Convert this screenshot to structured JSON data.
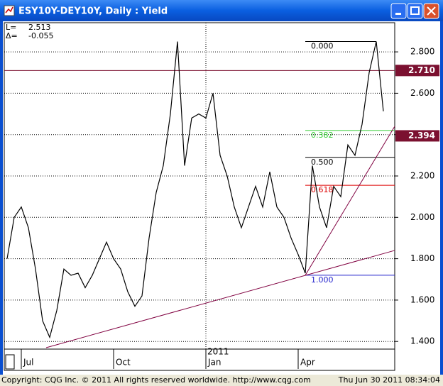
{
  "chart_data": {
    "type": "line",
    "title": "ESY10Y-DEY10Y, Daily : Yield",
    "stats": [
      {
        "label": "L=",
        "value": "2.513"
      },
      {
        "label": "Δ=",
        "value": "-0.055"
      }
    ],
    "categories": [
      null,
      null,
      "Jul",
      null,
      null,
      null,
      null,
      null,
      null,
      null,
      null,
      null,
      null,
      null,
      null,
      "Oct",
      null,
      null,
      null,
      null,
      null,
      null,
      null,
      null,
      null,
      null,
      null,
      null,
      "Jan",
      null,
      null,
      null,
      null,
      null,
      null,
      null,
      null,
      null,
      null,
      null,
      null,
      "Apr",
      null,
      null,
      null,
      null,
      null,
      null,
      null,
      null,
      null,
      null,
      null,
      null
    ],
    "year_label": {
      "index": 28,
      "text": "2011"
    },
    "series": [
      {
        "name": "Yield",
        "color": "#000000",
        "values": [
          1.8,
          2.0,
          2.05,
          1.95,
          1.75,
          1.5,
          1.42,
          1.55,
          1.75,
          1.72,
          1.73,
          1.66,
          1.72,
          1.8,
          1.88,
          1.8,
          1.75,
          1.64,
          1.57,
          1.62,
          1.9,
          2.12,
          2.25,
          2.5,
          2.85,
          2.25,
          2.48,
          2.5,
          2.48,
          2.6,
          2.3,
          2.2,
          2.05,
          1.95,
          2.05,
          2.15,
          2.05,
          2.22,
          2.05,
          2.0,
          1.9,
          1.82,
          1.73,
          2.25,
          2.05,
          1.95,
          2.15,
          2.1,
          2.35,
          2.3,
          2.45,
          2.7,
          2.85,
          2.513
        ]
      }
    ],
    "ylim": [
      1.363,
      2.941
    ],
    "yticks": [
      {
        "value": 1.4,
        "label": "1.400"
      },
      {
        "value": 1.6,
        "label": "1.600"
      },
      {
        "value": 1.8,
        "label": "1.800"
      },
      {
        "value": 2.0,
        "label": "2.000"
      },
      {
        "value": 2.2,
        "label": "2.200"
      },
      {
        "value": 2.4,
        "label": "2.400"
      },
      {
        "value": 2.6,
        "label": "2.600"
      },
      {
        "value": 2.8,
        "label": "2.800"
      }
    ],
    "grid": true,
    "levels": [
      {
        "value": 2.71,
        "label": "2.710",
        "color": "#7b1030"
      }
    ],
    "price_marker": {
      "value": 2.394,
      "label": "2.394",
      "color": "#7b1030"
    },
    "fib_start": 42,
    "fib": [
      {
        "ratio": "0.000",
        "level": 2.85,
        "color": "#000000"
      },
      {
        "ratio": "0.382",
        "level": 2.42,
        "color": "#33cc33"
      },
      {
        "ratio": "0.500",
        "level": 2.29,
        "color": "#000000"
      },
      {
        "ratio": "0.618",
        "level": 2.155,
        "color": "#dd0000"
      },
      {
        "ratio": "1.000",
        "level": 1.72,
        "color": "#2222cc"
      }
    ],
    "trendlines": [
      {
        "color": "#800040",
        "from": [
          5.5,
          1.37
        ],
        "to": [
          54.6,
          1.84
        ]
      },
      {
        "color": "#800040",
        "from": [
          42,
          1.72
        ],
        "to": [
          54.6,
          2.44
        ]
      }
    ],
    "footer_left": "Copyright: CQG Inc. © 2011 All rights reserved worldwide. http://www.cqg.com",
    "footer_right": "Thu Jun 30 2011 08:34:04"
  }
}
